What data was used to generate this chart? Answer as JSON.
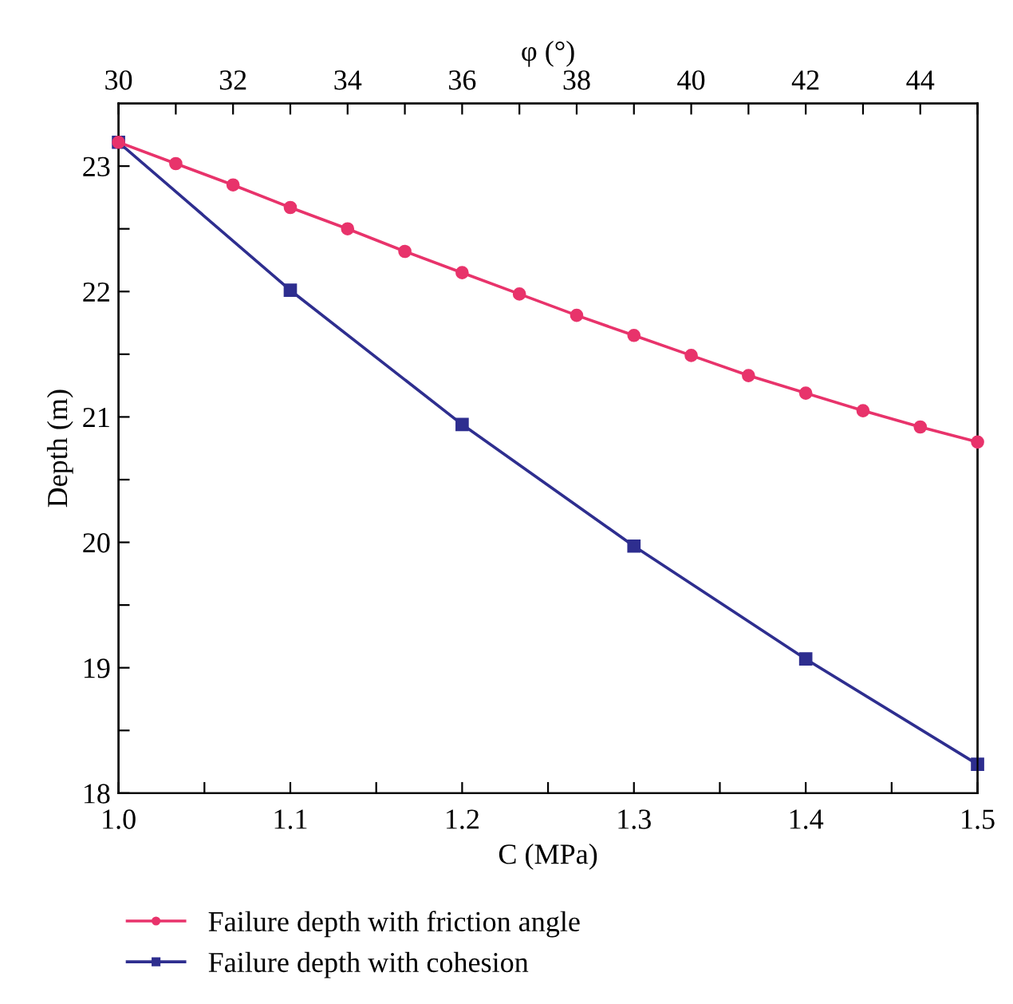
{
  "chart_data": {
    "type": "line",
    "xlabel": "C (MPa)",
    "x2label": "φ (°)",
    "ylabel": "Depth (m)",
    "xlim": [
      1.0,
      1.5
    ],
    "xticks": [
      {
        "value": 1.0,
        "label": "1.0"
      },
      {
        "value": 1.05,
        "label": null
      },
      {
        "value": 1.1,
        "label": "1.1"
      },
      {
        "value": 1.15,
        "label": null
      },
      {
        "value": 1.2,
        "label": "1.2"
      },
      {
        "value": 1.25,
        "label": null
      },
      {
        "value": 1.3,
        "label": "1.3"
      },
      {
        "value": 1.35,
        "label": null
      },
      {
        "value": 1.4,
        "label": "1.4"
      },
      {
        "value": 1.45,
        "label": null
      },
      {
        "value": 1.5,
        "label": "1.5"
      }
    ],
    "x2lim": [
      30,
      45
    ],
    "x2ticks": [
      30,
      {
        "value": 31,
        "label": null
      },
      32,
      {
        "value": 33,
        "label": null
      },
      34,
      {
        "value": 35,
        "label": null
      },
      36,
      {
        "value": 37,
        "label": null
      },
      38,
      {
        "value": 39,
        "label": null
      },
      40,
      {
        "value": 41,
        "label": null
      },
      42,
      {
        "value": 43,
        "label": null
      },
      44,
      {
        "value": 45,
        "label": null
      }
    ],
    "ylim": [
      18,
      23.5
    ],
    "yticks": [
      18,
      {
        "value": 18.5,
        "label": null
      },
      19,
      {
        "value": 19.5,
        "label": null
      },
      20,
      {
        "value": 20.5,
        "label": null
      },
      21,
      {
        "value": 21.5,
        "label": null
      },
      22,
      {
        "value": 22.5,
        "label": null
      },
      23
    ],
    "grid": false,
    "legend": "bottom",
    "line_style": "solid",
    "series": [
      {
        "name": "Failure depth with friction angle",
        "color": "#e8336b",
        "axis": "x2",
        "marker": "circle",
        "x": [
          30,
          31,
          32,
          33,
          34,
          35,
          36,
          37,
          38,
          39,
          40,
          41,
          42,
          43,
          44,
          45
        ],
        "values": [
          23.19,
          23.02,
          22.85,
          22.67,
          22.5,
          22.32,
          22.15,
          21.98,
          21.81,
          21.65,
          21.49,
          21.33,
          21.19,
          21.05,
          20.92,
          20.8
        ]
      },
      {
        "name": "Failure depth with cohesion",
        "color": "#2e2e8f",
        "marker": "square",
        "x": [
          1.0,
          1.1,
          1.2,
          1.3,
          1.4,
          1.5
        ],
        "values": [
          23.19,
          22.01,
          20.94,
          19.97,
          19.07,
          18.23
        ]
      }
    ]
  }
}
